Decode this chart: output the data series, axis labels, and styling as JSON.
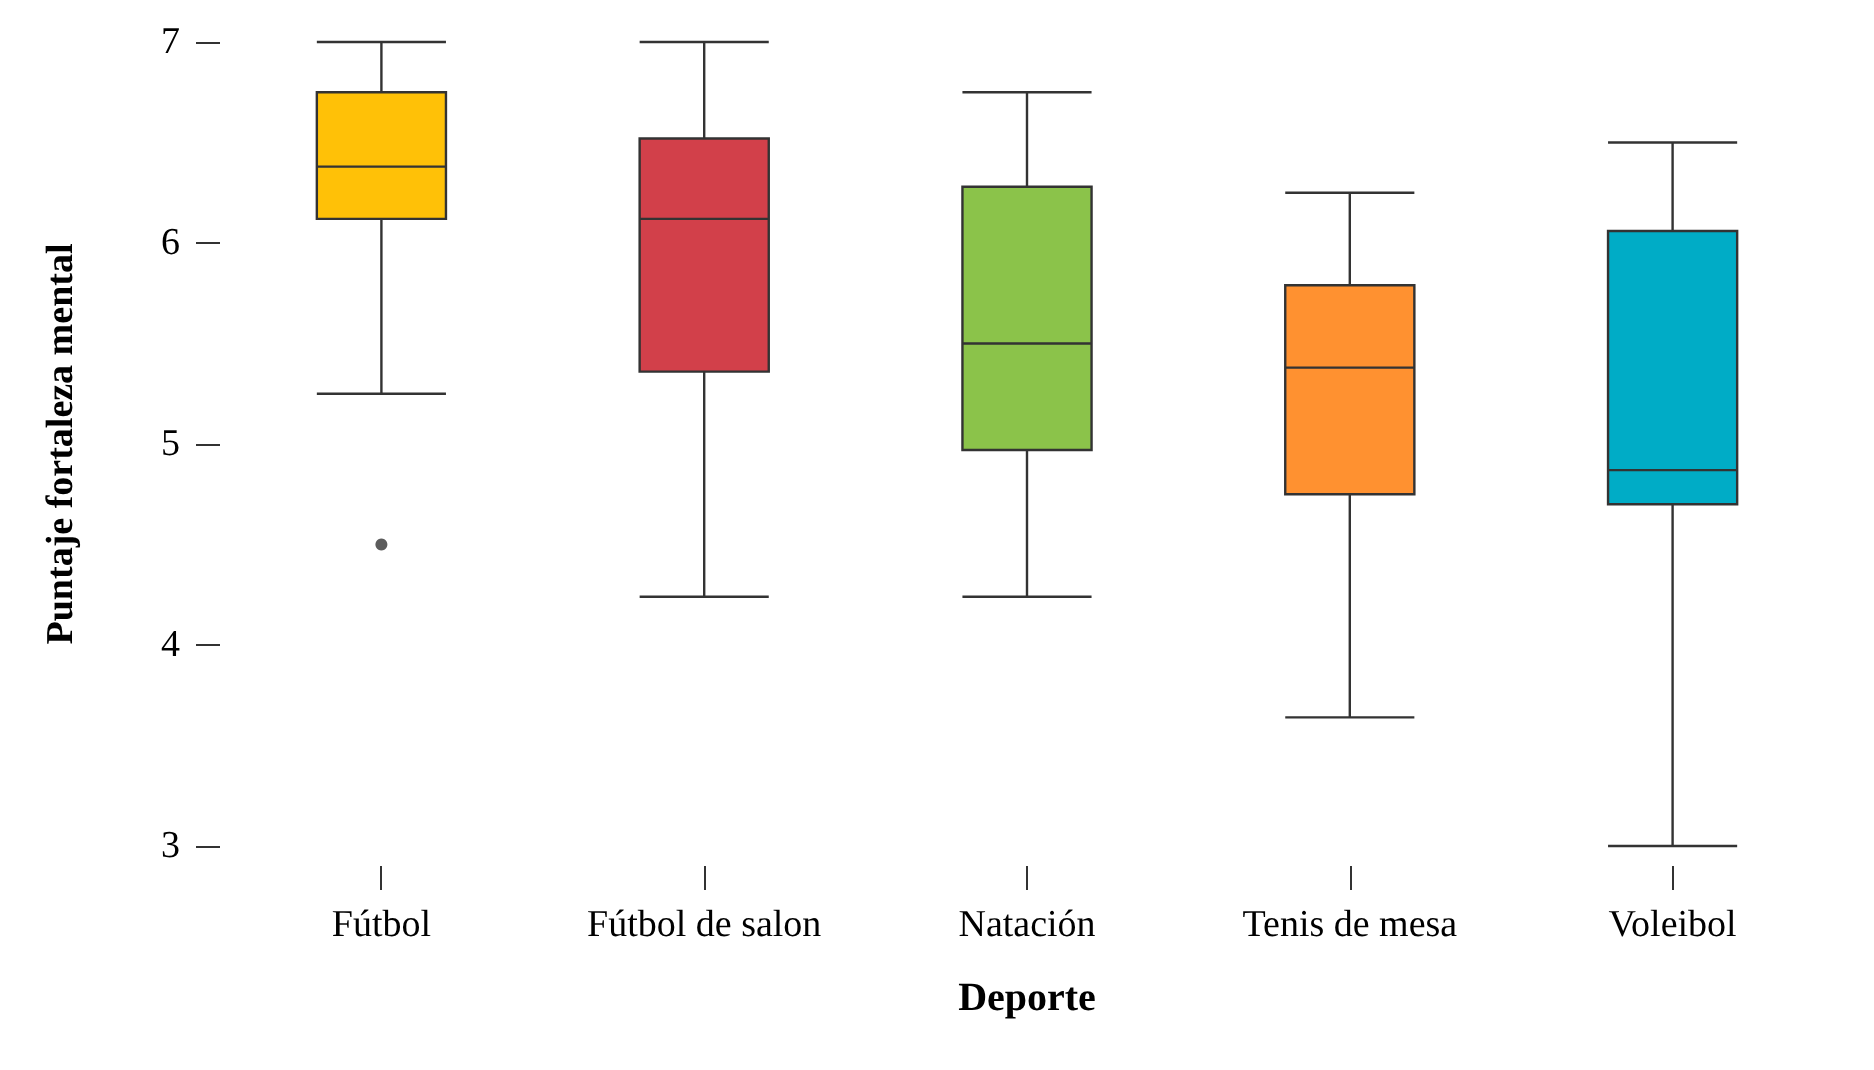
{
  "chart_data": {
    "type": "box",
    "xlabel": "Deporte",
    "ylabel": "Puntaje fortaleza mental",
    "categories": [
      "Fútbol",
      "Fútbol de salon",
      "Natación",
      "Tenis de mesa",
      "Voleibol"
    ],
    "colors": [
      "#ffc107",
      "#d2404a",
      "#8bc34a",
      "#ff9130",
      "#00acc6"
    ],
    "boxes": [
      {
        "low": 5.25,
        "q1": 6.12,
        "median": 6.38,
        "q3": 6.75,
        "high": 7,
        "outliers": [
          4.5
        ]
      },
      {
        "low": 4.24,
        "q1": 5.36,
        "median": 6.12,
        "q3": 6.52,
        "high": 7
      },
      {
        "low": 4.24,
        "q1": 4.97,
        "median": 5.5,
        "q3": 6.28,
        "high": 6.75
      },
      {
        "low": 3.64,
        "q1": 4.75,
        "median": 5.38,
        "q3": 5.79,
        "high": 6.25
      },
      {
        "low": 3,
        "q1": 4.7,
        "median": 4.87,
        "q3": 6.06,
        "high": 6.5
      }
    ],
    "ylim": [
      3,
      7
    ],
    "yticks": [
      3,
      4,
      5,
      6,
      7
    ],
    "grid": false
  }
}
